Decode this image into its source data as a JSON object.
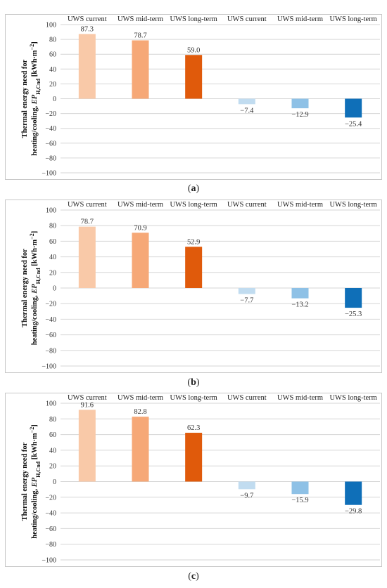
{
  "chart_data": [
    {
      "type": "bar",
      "panel": "a",
      "categories": [
        "UWS current",
        "UWS mid-term",
        "UWS long-term",
        "UWS current",
        "UWS mid-term",
        "UWS long-term"
      ],
      "values": [
        87.3,
        78.7,
        59.0,
        -7.4,
        -12.9,
        -25.4
      ],
      "value_labels": [
        "87.3",
        "78.7",
        "59.0",
        "−7.4",
        "−12.9",
        "−25.4"
      ],
      "colors": [
        "#f9c9a8",
        "#f6a877",
        "#e05a0b",
        "#c1dcf0",
        "#8ec1e6",
        "#0f6fb8"
      ],
      "ylabel": "Thermal energy need for heating/cooling, EP_H,Cnd [kWh·m⁻²]",
      "ylim": [
        -100,
        100
      ],
      "yticks": [
        100,
        80,
        60,
        40,
        20,
        0,
        -20,
        -40,
        -60,
        -80,
        -100
      ],
      "ytick_labels": [
        "100",
        "80",
        "60",
        "40",
        "20",
        "0",
        "−20",
        "−40",
        "−60",
        "−80",
        "−100"
      ],
      "grid": true
    },
    {
      "type": "bar",
      "panel": "b",
      "categories": [
        "UWS current",
        "UWS mid-term",
        "UWS long-term",
        "UWS current",
        "UWS mid-term",
        "UWS long-term"
      ],
      "values": [
        78.7,
        70.9,
        52.9,
        -7.7,
        -13.2,
        -25.3
      ],
      "value_labels": [
        "78.7",
        "70.9",
        "52.9",
        "−7.7",
        "−13.2",
        "−25.3"
      ],
      "colors": [
        "#f9c9a8",
        "#f6a877",
        "#e05a0b",
        "#c1dcf0",
        "#8ec1e6",
        "#0f6fb8"
      ],
      "ylabel": "Thermal energy need for heating/cooling, EP_H,Cnd [kWh·m⁻²]",
      "ylim": [
        -100,
        100
      ],
      "yticks": [
        100,
        80,
        60,
        40,
        20,
        0,
        -20,
        -40,
        -60,
        -80,
        -100
      ],
      "ytick_labels": [
        "100",
        "80",
        "60",
        "40",
        "20",
        "0",
        "−20",
        "−40",
        "−60",
        "−80",
        "−100"
      ],
      "grid": true
    },
    {
      "type": "bar",
      "panel": "c",
      "categories": [
        "UWS current",
        "UWS mid-term",
        "UWS long-term",
        "UWS current",
        "UWS mid-term",
        "UWS long-term"
      ],
      "values": [
        91.6,
        82.8,
        62.3,
        -9.7,
        -15.9,
        -29.8
      ],
      "value_labels": [
        "91.6",
        "82.8",
        "62.3",
        "−9.7",
        "−15.9",
        "−29.8"
      ],
      "colors": [
        "#f9c9a8",
        "#f6a877",
        "#e05a0b",
        "#c1dcf0",
        "#8ec1e6",
        "#0f6fb8"
      ],
      "ylabel": "Thermal energy need for heating/cooling, EP_H,Cnd [kWh·m⁻²]",
      "ylim": [
        -100,
        100
      ],
      "yticks": [
        100,
        80,
        60,
        40,
        20,
        0,
        -20,
        -40,
        -60,
        -80,
        -100
      ],
      "ytick_labels": [
        "100",
        "80",
        "60",
        "40",
        "20",
        "0",
        "−20",
        "−40",
        "−60",
        "−80",
        "−100"
      ],
      "grid": true
    }
  ],
  "captions": {
    "a": {
      "open": "(",
      "letter": "a",
      "close": ")"
    },
    "b": {
      "open": "(",
      "letter": "b",
      "close": ")"
    },
    "c": {
      "open": "(",
      "letter": "c",
      "close": ")"
    }
  },
  "ylabel_parts": {
    "line1": "Thermal energy need for",
    "line2_prefix": "heating/cooling, ",
    "ep": "EP",
    "sub": "H,Cnd",
    "unit": " [kWh·m",
    "sup": "−2",
    "close": "]"
  }
}
